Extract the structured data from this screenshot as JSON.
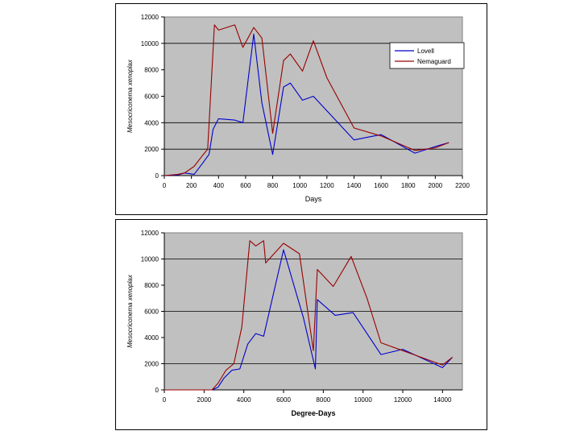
{
  "chart_data": [
    {
      "type": "line",
      "title": "",
      "xlabel": "Days",
      "ylabel": "Mesocriconema xenoplax",
      "xlim": [
        0,
        2200
      ],
      "ylim": [
        0,
        12000
      ],
      "xticks": [
        0,
        200,
        400,
        600,
        800,
        1000,
        1200,
        1400,
        1600,
        1800,
        2000,
        2200
      ],
      "yticks": [
        0,
        2000,
        4000,
        6000,
        8000,
        10000,
        12000
      ],
      "tick_labels_x": [
        "0",
        "200",
        "400",
        "600",
        "800",
        "1000",
        "1200",
        "1400",
        "1600",
        "1800",
        "2000",
        "2200"
      ],
      "tick_labels_y": [
        "0",
        "2000",
        "4000",
        "6000",
        "8000",
        "10000",
        "12000"
      ],
      "gridlines_y": [
        2000,
        4000,
        10000
      ],
      "legend": {
        "position": "top-right",
        "entries": [
          "Lovell",
          "Nemaguard"
        ]
      },
      "series": [
        {
          "name": "Lovell",
          "color": "#0000cc",
          "points": [
            [
              0,
              0
            ],
            [
              100,
              50
            ],
            [
              150,
              200
            ],
            [
              220,
              100
            ],
            [
              280,
              900
            ],
            [
              330,
              1600
            ],
            [
              360,
              3500
            ],
            [
              400,
              4300
            ],
            [
              520,
              4200
            ],
            [
              580,
              4000
            ],
            [
              660,
              10700
            ],
            [
              720,
              5500
            ],
            [
              800,
              1600
            ],
            [
              880,
              6700
            ],
            [
              930,
              7000
            ],
            [
              1020,
              5700
            ],
            [
              1100,
              6000
            ],
            [
              1400,
              2700
            ],
            [
              1600,
              3100
            ],
            [
              1850,
              1700
            ],
            [
              2000,
              2200
            ],
            [
              2100,
              2500
            ]
          ]
        },
        {
          "name": "Nemaguard",
          "color": "#990000",
          "points": [
            [
              0,
              0
            ],
            [
              100,
              100
            ],
            [
              150,
              200
            ],
            [
              220,
              700
            ],
            [
              280,
              1500
            ],
            [
              320,
              2000
            ],
            [
              370,
              11400
            ],
            [
              400,
              11000
            ],
            [
              520,
              11400
            ],
            [
              580,
              9700
            ],
            [
              660,
              11200
            ],
            [
              720,
              10400
            ],
            [
              800,
              3200
            ],
            [
              880,
              8700
            ],
            [
              930,
              9200
            ],
            [
              1020,
              7900
            ],
            [
              1100,
              10200
            ],
            [
              1200,
              7400
            ],
            [
              1400,
              3600
            ],
            [
              1600,
              3000
            ],
            [
              1850,
              1900
            ],
            [
              2000,
              2100
            ],
            [
              2100,
              2500
            ]
          ]
        }
      ]
    },
    {
      "type": "line",
      "title": "",
      "xlabel": "Degree-Days",
      "ylabel": "Mesocriconema xenoplax",
      "xlim": [
        0,
        15000
      ],
      "ylim": [
        0,
        12000
      ],
      "xticks": [
        0,
        2000,
        4000,
        6000,
        8000,
        10000,
        12000,
        14000
      ],
      "yticks": [
        0,
        2000,
        4000,
        6000,
        8000,
        10000,
        12000
      ],
      "tick_labels_x": [
        "0",
        "2000",
        "4000",
        "6000",
        "8000",
        "10000",
        "12000",
        "14000"
      ],
      "tick_labels_y": [
        "0",
        "2000",
        "4000",
        "6000",
        "8000",
        "10000",
        "12000"
      ],
      "gridlines_y": [
        2000,
        6000,
        10000
      ],
      "legend": null,
      "series": [
        {
          "name": "Lovell",
          "color": "#0000cc",
          "points": [
            [
              0,
              0
            ],
            [
              2000,
              0
            ],
            [
              2400,
              0
            ],
            [
              2700,
              200
            ],
            [
              3000,
              900
            ],
            [
              3400,
              1500
            ],
            [
              3800,
              1600
            ],
            [
              4200,
              3500
            ],
            [
              4600,
              4300
            ],
            [
              5000,
              4100
            ],
            [
              6000,
              10700
            ],
            [
              7000,
              5500
            ],
            [
              7600,
              1600
            ],
            [
              7700,
              6900
            ],
            [
              8600,
              5700
            ],
            [
              9500,
              5900
            ],
            [
              10900,
              2700
            ],
            [
              12000,
              3100
            ],
            [
              14000,
              1700
            ],
            [
              14500,
              2500
            ]
          ]
        },
        {
          "name": "Nemaguard",
          "color": "#990000",
          "points": [
            [
              0,
              0
            ],
            [
              2200,
              0
            ],
            [
              2400,
              0
            ],
            [
              2700,
              500
            ],
            [
              3100,
              1500
            ],
            [
              3500,
              2000
            ],
            [
              3900,
              4800
            ],
            [
              4300,
              11400
            ],
            [
              4600,
              11000
            ],
            [
              5000,
              11400
            ],
            [
              5100,
              9700
            ],
            [
              6000,
              11200
            ],
            [
              6800,
              10400
            ],
            [
              7500,
              3000
            ],
            [
              7700,
              9200
            ],
            [
              8500,
              7900
            ],
            [
              9400,
              10200
            ],
            [
              10200,
              7000
            ],
            [
              10900,
              3600
            ],
            [
              12000,
              3000
            ],
            [
              14000,
              1900
            ],
            [
              14500,
              2500
            ]
          ]
        }
      ]
    }
  ]
}
